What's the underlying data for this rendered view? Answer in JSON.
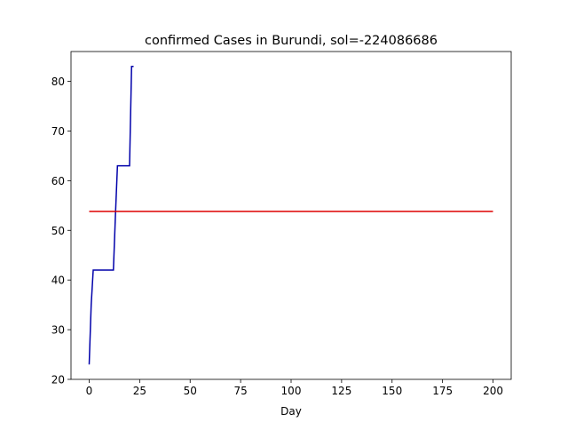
{
  "chart_data": {
    "type": "line",
    "title": "confirmed Cases in Burundi, sol=-224086686",
    "xlabel": "Day",
    "ylabel": "",
    "xlim": [
      -9,
      209
    ],
    "ylim": [
      20,
      86
    ],
    "xticks": [
      0,
      25,
      50,
      75,
      100,
      125,
      150,
      175,
      200
    ],
    "yticks": [
      20,
      30,
      40,
      50,
      60,
      70,
      80
    ],
    "grid": false,
    "series": [
      {
        "color": "#0000aa",
        "x": [
          0,
          1,
          2,
          3,
          4,
          5,
          6,
          7,
          8,
          9,
          10,
          11,
          12,
          13,
          14,
          15,
          16,
          17,
          18,
          19,
          20,
          21,
          22
        ],
        "values": [
          23,
          35,
          42,
          42,
          42,
          42,
          42,
          42,
          42,
          42,
          42,
          42,
          42,
          53,
          63,
          63,
          63,
          63,
          63,
          63,
          63,
          83,
          83
        ]
      },
      {
        "color": "#dd0000",
        "x": [
          0,
          200
        ],
        "values": [
          53.8,
          53.8
        ]
      }
    ]
  }
}
